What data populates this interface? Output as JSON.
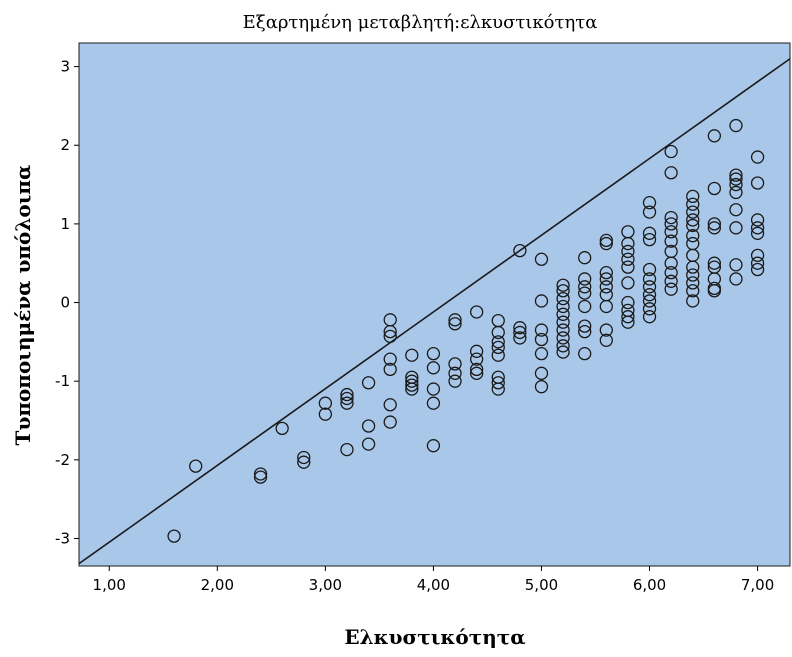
{
  "chart_data": {
    "type": "scatter",
    "title": "Εξαρτημένη μεταβλητή:ελκυστικότητα",
    "xlabel": "Ελκυστικότητα",
    "ylabel": "Τυποποιημένα υπόλοιπα",
    "xlim": [
      0.72,
      7.3
    ],
    "ylim": [
      -3.35,
      3.3
    ],
    "xticks": [
      1,
      2,
      3,
      4,
      5,
      6,
      7
    ],
    "xtick_labels": [
      "1,00",
      "2,00",
      "3,00",
      "4,00",
      "5,00",
      "6,00",
      "7,00"
    ],
    "yticks": [
      -3,
      -2,
      -1,
      0,
      1,
      2,
      3
    ],
    "ytick_labels": [
      "-3",
      "-2",
      "-1",
      "0",
      "1",
      "2",
      "3"
    ],
    "grid": false,
    "plot_background": "#a9c8e9",
    "marker_color": "#1a1a1a",
    "line_color": "#1a1a1a",
    "reference_line": {
      "x": [
        0.72,
        7.3
      ],
      "y": [
        -3.32,
        3.1
      ]
    },
    "points": [
      [
        1.6,
        -2.97
      ],
      [
        1.8,
        -2.08
      ],
      [
        2.4,
        -2.18
      ],
      [
        2.4,
        -2.22
      ],
      [
        2.6,
        -1.6
      ],
      [
        2.8,
        -1.97
      ],
      [
        2.8,
        -2.03
      ],
      [
        3.0,
        -1.28
      ],
      [
        3.0,
        -1.42
      ],
      [
        3.2,
        -1.17
      ],
      [
        3.2,
        -1.22
      ],
      [
        3.2,
        -1.28
      ],
      [
        3.2,
        -1.87
      ],
      [
        3.4,
        -1.02
      ],
      [
        3.4,
        -1.57
      ],
      [
        3.4,
        -1.8
      ],
      [
        3.6,
        -0.22
      ],
      [
        3.6,
        -0.37
      ],
      [
        3.6,
        -0.43
      ],
      [
        3.6,
        -0.72
      ],
      [
        3.6,
        -0.85
      ],
      [
        3.6,
        -1.3
      ],
      [
        3.6,
        -1.52
      ],
      [
        3.8,
        -0.67
      ],
      [
        3.8,
        -0.95
      ],
      [
        3.8,
        -1.0
      ],
      [
        3.8,
        -1.05
      ],
      [
        3.8,
        -1.1
      ],
      [
        4.0,
        -0.65
      ],
      [
        4.0,
        -0.83
      ],
      [
        4.0,
        -1.1
      ],
      [
        4.0,
        -1.28
      ],
      [
        4.0,
        -1.82
      ],
      [
        4.2,
        -0.22
      ],
      [
        4.2,
        -0.27
      ],
      [
        4.2,
        -0.78
      ],
      [
        4.2,
        -0.9
      ],
      [
        4.2,
        -1.0
      ],
      [
        4.4,
        -0.12
      ],
      [
        4.4,
        -0.62
      ],
      [
        4.4,
        -0.72
      ],
      [
        4.4,
        -0.85
      ],
      [
        4.4,
        -0.9
      ],
      [
        4.6,
        -0.23
      ],
      [
        4.6,
        -0.38
      ],
      [
        4.6,
        -0.5
      ],
      [
        4.6,
        -0.57
      ],
      [
        4.6,
        -0.67
      ],
      [
        4.6,
        -0.95
      ],
      [
        4.6,
        -1.02
      ],
      [
        4.6,
        -1.1
      ],
      [
        4.8,
        0.66
      ],
      [
        4.8,
        -0.32
      ],
      [
        4.8,
        -0.38
      ],
      [
        4.8,
        -0.45
      ],
      [
        5.0,
        0.55
      ],
      [
        5.0,
        0.02
      ],
      [
        5.0,
        -0.35
      ],
      [
        5.0,
        -0.47
      ],
      [
        5.0,
        -0.65
      ],
      [
        5.0,
        -0.9
      ],
      [
        5.0,
        -1.07
      ],
      [
        5.2,
        0.22
      ],
      [
        5.2,
        0.15
      ],
      [
        5.2,
        0.05
      ],
      [
        5.2,
        -0.05
      ],
      [
        5.2,
        -0.15
      ],
      [
        5.2,
        -0.25
      ],
      [
        5.2,
        -0.35
      ],
      [
        5.2,
        -0.45
      ],
      [
        5.2,
        -0.55
      ],
      [
        5.2,
        -0.63
      ],
      [
        5.4,
        0.57
      ],
      [
        5.4,
        0.3
      ],
      [
        5.4,
        0.2
      ],
      [
        5.4,
        0.12
      ],
      [
        5.4,
        -0.05
      ],
      [
        5.4,
        -0.3
      ],
      [
        5.4,
        -0.37
      ],
      [
        5.4,
        -0.65
      ],
      [
        5.6,
        0.79
      ],
      [
        5.6,
        0.75
      ],
      [
        5.6,
        0.38
      ],
      [
        5.6,
        0.3
      ],
      [
        5.6,
        0.2
      ],
      [
        5.6,
        0.1
      ],
      [
        5.6,
        -0.05
      ],
      [
        5.6,
        -0.35
      ],
      [
        5.6,
        -0.48
      ],
      [
        5.8,
        0.9
      ],
      [
        5.8,
        0.75
      ],
      [
        5.8,
        0.65
      ],
      [
        5.8,
        0.55
      ],
      [
        5.8,
        0.45
      ],
      [
        5.8,
        0.25
      ],
      [
        5.8,
        0.0
      ],
      [
        5.8,
        -0.1
      ],
      [
        5.8,
        -0.18
      ],
      [
        5.8,
        -0.25
      ],
      [
        6.0,
        1.27
      ],
      [
        6.0,
        1.15
      ],
      [
        6.0,
        0.88
      ],
      [
        6.0,
        0.8
      ],
      [
        6.0,
        0.42
      ],
      [
        6.0,
        0.3
      ],
      [
        6.0,
        0.2
      ],
      [
        6.0,
        0.1
      ],
      [
        6.0,
        0.02
      ],
      [
        6.0,
        -0.08
      ],
      [
        6.0,
        -0.18
      ],
      [
        6.2,
        1.92
      ],
      [
        6.2,
        1.65
      ],
      [
        6.2,
        1.08
      ],
      [
        6.2,
        1.0
      ],
      [
        6.2,
        0.9
      ],
      [
        6.2,
        0.78
      ],
      [
        6.2,
        0.65
      ],
      [
        6.2,
        0.5
      ],
      [
        6.2,
        0.38
      ],
      [
        6.2,
        0.27
      ],
      [
        6.2,
        0.17
      ],
      [
        6.4,
        1.35
      ],
      [
        6.4,
        1.25
      ],
      [
        6.4,
        1.15
      ],
      [
        6.4,
        1.05
      ],
      [
        6.4,
        0.98
      ],
      [
        6.4,
        0.85
      ],
      [
        6.4,
        0.75
      ],
      [
        6.4,
        0.6
      ],
      [
        6.4,
        0.45
      ],
      [
        6.4,
        0.35
      ],
      [
        6.4,
        0.25
      ],
      [
        6.4,
        0.15
      ],
      [
        6.4,
        0.02
      ],
      [
        6.6,
        2.12
      ],
      [
        6.6,
        1.45
      ],
      [
        6.6,
        1.0
      ],
      [
        6.6,
        0.95
      ],
      [
        6.6,
        0.5
      ],
      [
        6.6,
        0.45
      ],
      [
        6.6,
        0.3
      ],
      [
        6.6,
        0.18
      ],
      [
        6.6,
        0.15
      ],
      [
        6.8,
        2.25
      ],
      [
        6.8,
        1.62
      ],
      [
        6.8,
        1.57
      ],
      [
        6.8,
        1.5
      ],
      [
        6.8,
        1.4
      ],
      [
        6.8,
        1.18
      ],
      [
        6.8,
        0.95
      ],
      [
        6.8,
        0.48
      ],
      [
        6.8,
        0.3
      ],
      [
        7.0,
        1.85
      ],
      [
        7.0,
        1.52
      ],
      [
        7.0,
        1.05
      ],
      [
        7.0,
        0.95
      ],
      [
        7.0,
        0.88
      ],
      [
        7.0,
        0.6
      ],
      [
        7.0,
        0.5
      ],
      [
        7.0,
        0.42
      ]
    ]
  }
}
